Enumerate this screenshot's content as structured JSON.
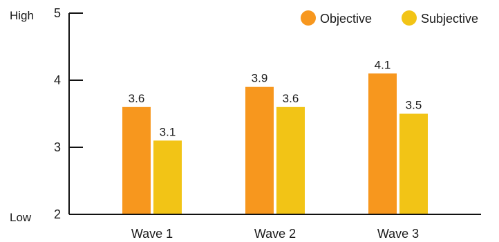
{
  "chart_data": {
    "type": "bar",
    "categories": [
      "Wave 1",
      "Wave 2",
      "Wave 3"
    ],
    "series": [
      {
        "name": "Objective",
        "values": [
          3.6,
          3.9,
          4.1
        ]
      },
      {
        "name": "Subjective",
        "values": [
          3.1,
          3.6,
          3.5
        ]
      }
    ],
    "data_labels": [
      [
        "3.6",
        "3.9",
        "4.1"
      ],
      [
        "3.1",
        "3.6",
        "3.5"
      ]
    ],
    "ylim": [
      2,
      5
    ],
    "yticks": [
      "2",
      "3",
      "4",
      "5"
    ],
    "ytick_values": [
      2,
      3,
      4,
      5
    ],
    "y_high_label": "High",
    "y_low_label": "Low",
    "colors": {
      "Objective": "#F7971E",
      "Subjective": "#F2C416"
    },
    "grid": false,
    "legend_position": "top-right"
  }
}
